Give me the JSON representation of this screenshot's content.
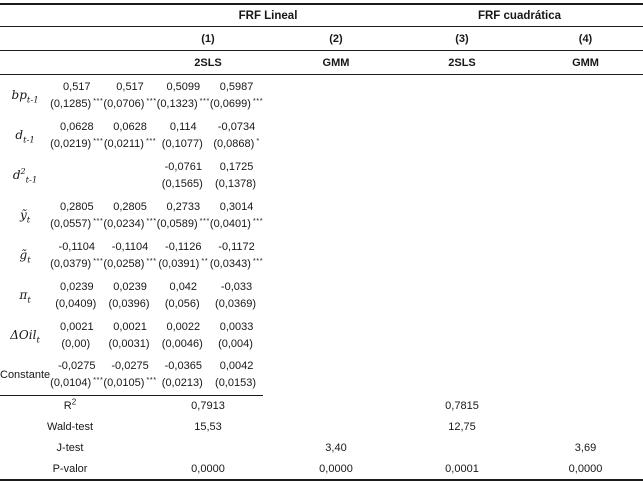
{
  "table": {
    "group_headers": [
      {
        "label": "FRF Lineal"
      },
      {
        "label": "FRF cuadrática"
      }
    ],
    "column_numbers": [
      "(1)",
      "(2)",
      "(3)",
      "(4)"
    ],
    "methods": [
      "2SLS",
      "GMM",
      "2SLS",
      "GMM"
    ],
    "rows": [
      {
        "label": {
          "base": "bp",
          "sup": "",
          "sub": "t-1",
          "italic": true
        },
        "cells": [
          {
            "coef": "0,517",
            "se": "(0,1285)",
            "stars": "***"
          },
          {
            "coef": "0,517",
            "se": "(0,0706)",
            "stars": "***"
          },
          {
            "coef": "0,5099",
            "se": "(0,1323)",
            "stars": "***"
          },
          {
            "coef": "0,5987",
            "se": "(0,0699)",
            "stars": "***"
          }
        ]
      },
      {
        "label": {
          "base": "d",
          "sup": "",
          "sub": "t-1",
          "italic": true
        },
        "cells": [
          {
            "coef": "0,0628",
            "se": "(0,0219)",
            "stars": "***"
          },
          {
            "coef": "0,0628",
            "se": "(0,0211)",
            "stars": "***"
          },
          {
            "coef": "0,114",
            "se": "(0,1077)",
            "stars": ""
          },
          {
            "coef": "-0,0734",
            "se": "(0,0868)",
            "stars": "*"
          }
        ]
      },
      {
        "label": {
          "base": "d",
          "sup": "2",
          "sub": "t-1",
          "italic": true
        },
        "cells": [
          {
            "coef": "",
            "se": "",
            "stars": ""
          },
          {
            "coef": "",
            "se": "",
            "stars": ""
          },
          {
            "coef": "-0,0761",
            "se": "(0,1565)",
            "stars": ""
          },
          {
            "coef": "0,1725",
            "se": "(0,1378)",
            "stars": ""
          }
        ]
      },
      {
        "label": {
          "base": "ỹ",
          "sup": "",
          "sub": "t",
          "italic": true
        },
        "cells": [
          {
            "coef": "0,2805",
            "se": "(0,0557)",
            "stars": "***"
          },
          {
            "coef": "0,2805",
            "se": "(0,0234)",
            "stars": "***"
          },
          {
            "coef": "0,2733",
            "se": "(0,0589)",
            "stars": "***"
          },
          {
            "coef": "0,3014",
            "se": "(0,0401)",
            "stars": "***"
          }
        ]
      },
      {
        "label": {
          "base": "g̃",
          "sup": "",
          "sub": "t",
          "italic": true
        },
        "cells": [
          {
            "coef": "-0,1104",
            "se": "(0,0379)",
            "stars": "***"
          },
          {
            "coef": "-0,1104",
            "se": "(0,0258)",
            "stars": "***"
          },
          {
            "coef": "-0,1126",
            "se": "(0,0391)",
            "stars": "**"
          },
          {
            "coef": "-0,1172",
            "se": "(0,0343)",
            "stars": "***"
          }
        ]
      },
      {
        "label": {
          "base": "π",
          "sup": "",
          "sub": "t",
          "italic": true
        },
        "cells": [
          {
            "coef": "0,0239",
            "se": "(0,0409)",
            "stars": ""
          },
          {
            "coef": "0,0239",
            "se": "(0,0396)",
            "stars": ""
          },
          {
            "coef": "0,042",
            "se": "(0,056)",
            "stars": ""
          },
          {
            "coef": "-0,033",
            "se": "(0,0369)",
            "stars": ""
          }
        ]
      },
      {
        "label": {
          "base": "ΔOil",
          "sup": "",
          "sub": "t",
          "italic": true
        },
        "cells": [
          {
            "coef": "0,0021",
            "se": "(0,00)",
            "stars": ""
          },
          {
            "coef": "0,0021",
            "se": "(0,0031)",
            "stars": ""
          },
          {
            "coef": "0,0022",
            "se": "(0,0046)",
            "stars": ""
          },
          {
            "coef": "0,0033",
            "se": "(0,004)",
            "stars": ""
          }
        ]
      },
      {
        "label": {
          "base": "Constante",
          "sup": "",
          "sub": "",
          "italic": false
        },
        "cells": [
          {
            "coef": "-0,0275",
            "se": "(0,0104)",
            "stars": "***"
          },
          {
            "coef": "-0,0275",
            "se": "(0,0105)",
            "stars": "***"
          },
          {
            "coef": "-0,0365",
            "se": "(0,0213)",
            "stars": ""
          },
          {
            "coef": "0,0042",
            "se": "(0,0153)",
            "stars": ""
          }
        ]
      }
    ],
    "stats": [
      {
        "label": {
          "base": "R",
          "sup": "2",
          "sub": "",
          "italic": false
        },
        "values": [
          "0,7913",
          "",
          "0,7815",
          ""
        ]
      },
      {
        "label": {
          "base": "Wald-test",
          "sup": "",
          "sub": "",
          "italic": false
        },
        "values": [
          "15,53",
          "",
          "12,75",
          ""
        ]
      },
      {
        "label": {
          "base": "J-test",
          "sup": "",
          "sub": "",
          "italic": false
        },
        "values": [
          "",
          "3,40",
          "",
          "3,69"
        ]
      },
      {
        "label": {
          "base": "P-valor",
          "sup": "",
          "sub": "",
          "italic": false
        },
        "values": [
          "0,0000",
          "0,0000",
          "0,0001",
          "0,0000"
        ]
      }
    ]
  }
}
